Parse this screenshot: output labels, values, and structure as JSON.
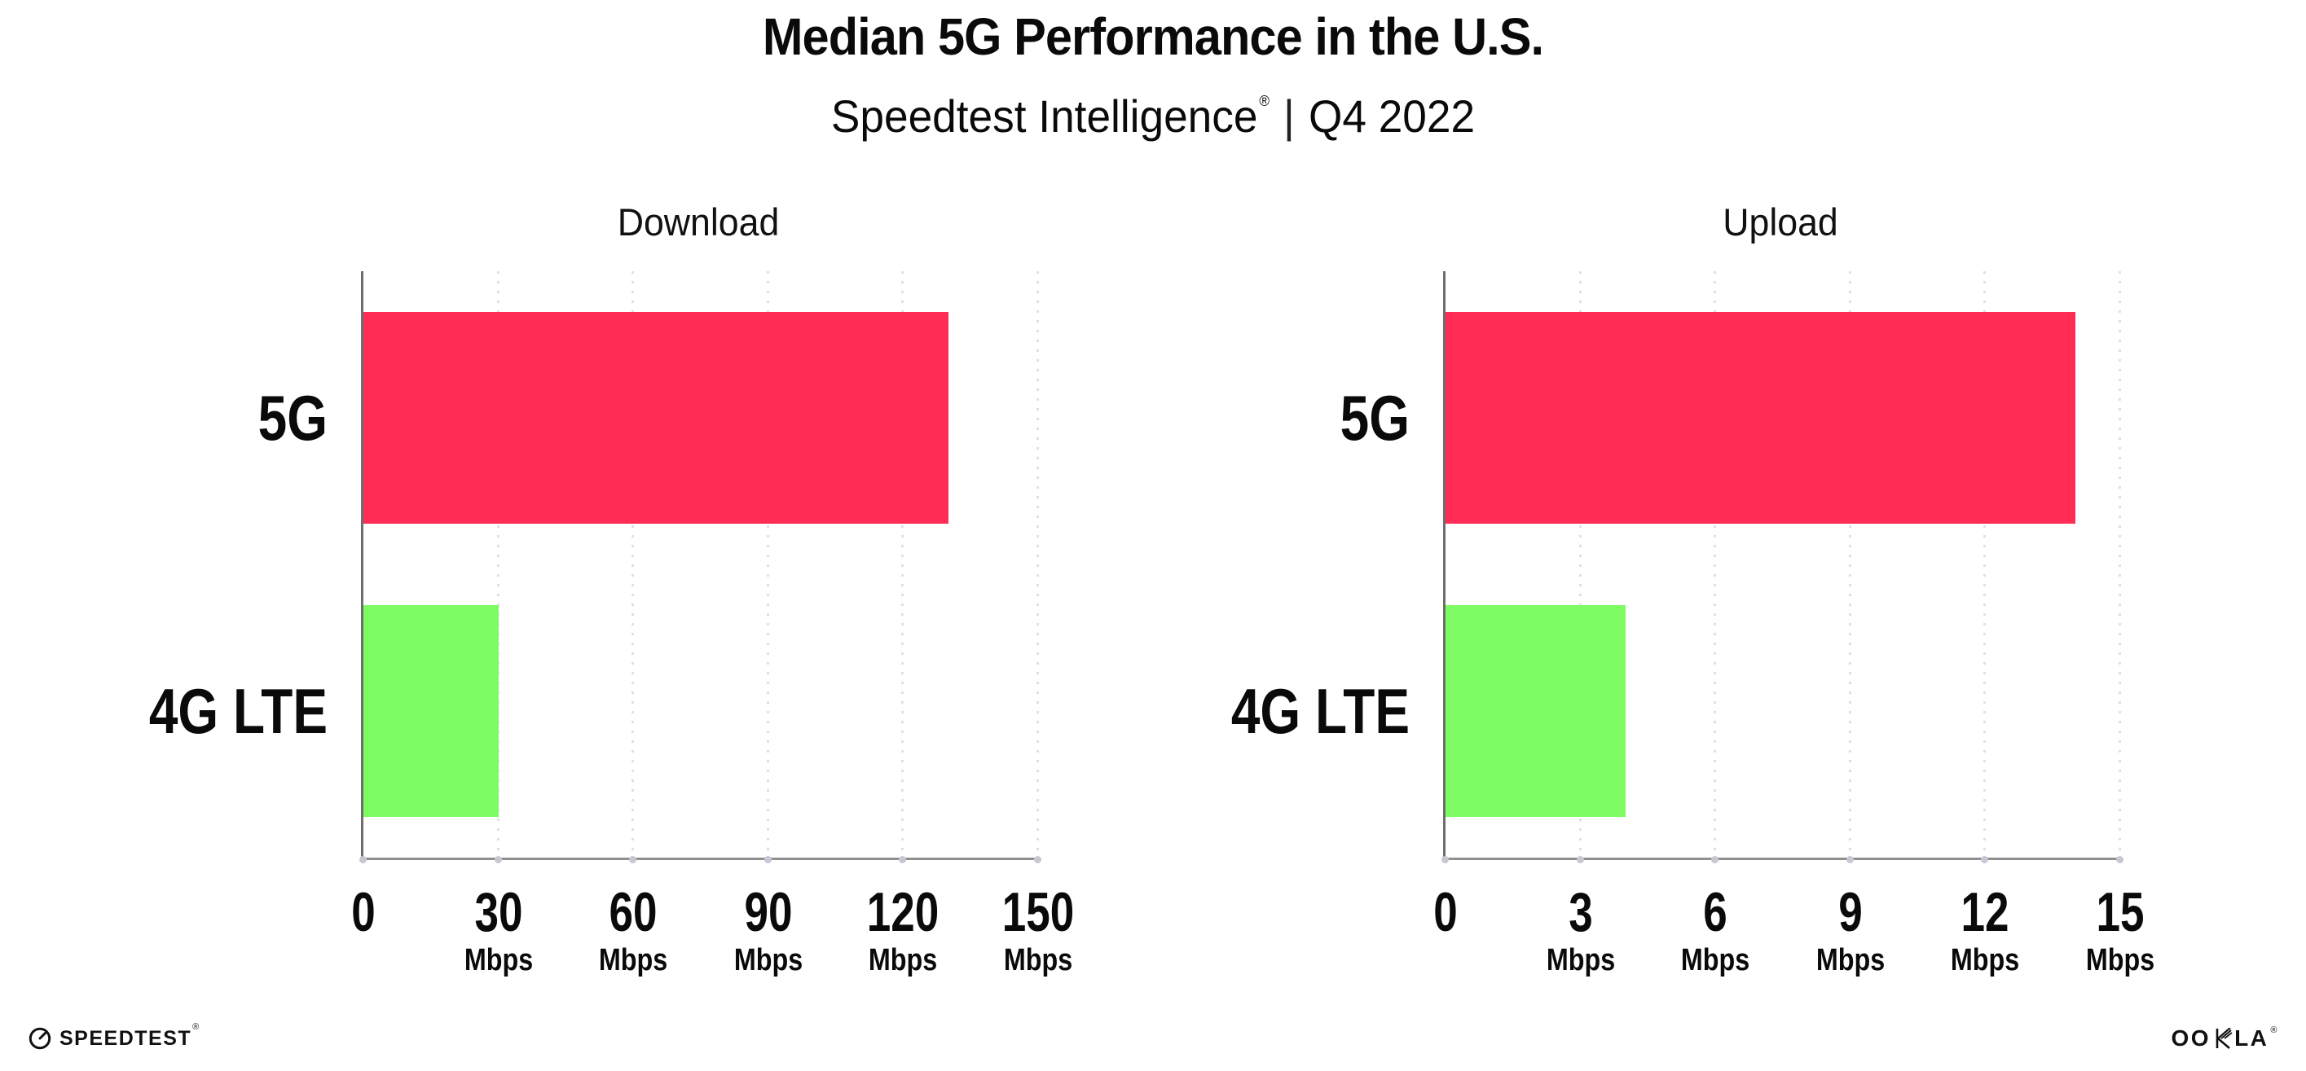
{
  "header": {
    "title": "Median 5G Performance in the U.S.",
    "subtitle_brand": "Speedtest Intelligence",
    "subtitle_mark": "®",
    "subtitle_separator": "|",
    "subtitle_period": "Q4 2022"
  },
  "chart_data": [
    {
      "type": "bar",
      "orientation": "horizontal",
      "title": "Download",
      "categories": [
        "5G",
        "4G LTE"
      ],
      "values": [
        130,
        30
      ],
      "unit": "Mbps",
      "xlim": [
        0,
        150
      ],
      "xticks": [
        0,
        30,
        60,
        90,
        120,
        150
      ],
      "bar_colors": [
        "#FF2D55",
        "#7DFD63"
      ],
      "grid": "dotted vertical gridlines",
      "legend": "none"
    },
    {
      "type": "bar",
      "orientation": "horizontal",
      "title": "Upload",
      "categories": [
        "5G",
        "4G LTE"
      ],
      "values": [
        14,
        4
      ],
      "unit": "Mbps",
      "xlim": [
        0,
        15
      ],
      "xticks": [
        0,
        3,
        6,
        9,
        12,
        15
      ],
      "bar_colors": [
        "#FF2D55",
        "#7DFD63"
      ],
      "grid": "dotted vertical gridlines",
      "legend": "none"
    }
  ],
  "footer": {
    "speedtest_wordmark": "SPEEDTEST",
    "speedtest_mark": "®",
    "ookla_wordmark": "OOKLA",
    "ookla_mark": "®"
  },
  "colors": {
    "bar_5g": "#FF2D55",
    "bar_4g_lte": "#7DFD63",
    "gridline": "#DFDFEA",
    "axis": "#8f8f8f",
    "text": "#0a0a0a"
  }
}
